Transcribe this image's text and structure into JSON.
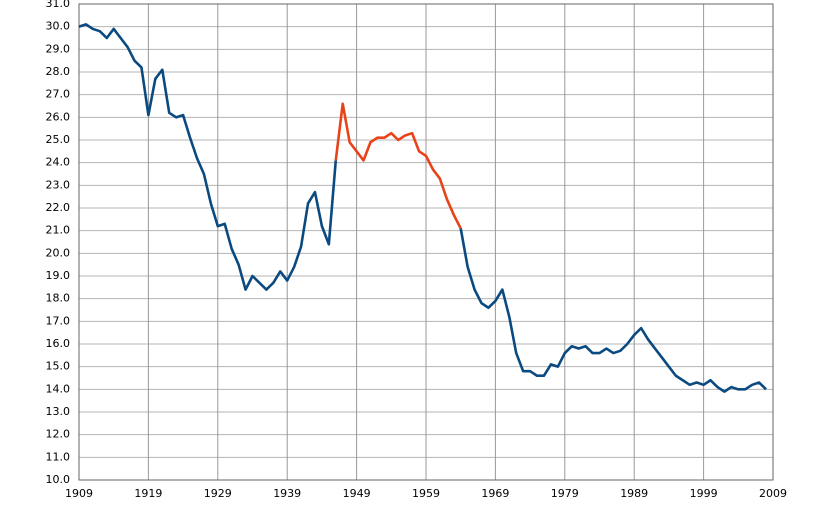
{
  "chart_data": {
    "type": "line",
    "x": [
      1909,
      1910,
      1911,
      1912,
      1913,
      1914,
      1915,
      1916,
      1917,
      1918,
      1919,
      1920,
      1921,
      1922,
      1923,
      1924,
      1925,
      1926,
      1927,
      1928,
      1929,
      1930,
      1931,
      1932,
      1933,
      1934,
      1935,
      1936,
      1937,
      1938,
      1939,
      1940,
      1941,
      1942,
      1943,
      1944,
      1945,
      1946,
      1947,
      1948,
      1949,
      1950,
      1951,
      1952,
      1953,
      1954,
      1955,
      1956,
      1957,
      1958,
      1959,
      1960,
      1961,
      1962,
      1963,
      1964,
      1965,
      1966,
      1967,
      1968,
      1969,
      1970,
      1971,
      1972,
      1973,
      1974,
      1975,
      1976,
      1977,
      1978,
      1979,
      1980,
      1981,
      1982,
      1983,
      1984,
      1985,
      1986,
      1987,
      1988,
      1989,
      1990,
      1991,
      1992,
      1993,
      1994,
      1995,
      1996,
      1997,
      1998,
      1999,
      2000,
      2001,
      2002,
      2003,
      2004,
      2005,
      2006,
      2007,
      2008
    ],
    "series": [
      {
        "color": "#0b4a80",
        "values": [
          30.0,
          30.1,
          29.9,
          29.8,
          29.5,
          29.9,
          29.5,
          29.1,
          28.5,
          28.2,
          26.1,
          27.7,
          28.1,
          26.2,
          26.0,
          26.1,
          25.1,
          24.2,
          23.5,
          22.2,
          21.2,
          21.3,
          20.2,
          19.5,
          18.4,
          19.0,
          18.7,
          18.4,
          18.7,
          19.2,
          18.8,
          19.4,
          20.3,
          22.2,
          22.7,
          21.2,
          20.4,
          24.1,
          null,
          null,
          null,
          null,
          null,
          null,
          null,
          null,
          null,
          null,
          null,
          null,
          null,
          null,
          null,
          null,
          null,
          21.1,
          19.4,
          18.4,
          17.8,
          17.6,
          17.9,
          18.4,
          17.2,
          15.6,
          14.8,
          14.8,
          14.6,
          14.6,
          15.1,
          15.0,
          15.6,
          15.9,
          15.8,
          15.9,
          15.6,
          15.6,
          15.8,
          15.6,
          15.7,
          16.0,
          16.4,
          16.7,
          16.2,
          15.8,
          15.4,
          15.0,
          14.6,
          14.4,
          14.2,
          14.3,
          14.2,
          14.4,
          14.1,
          13.9,
          14.1,
          14.0,
          14.0,
          14.2,
          14.3,
          14.0
        ]
      },
      {
        "color": "#e8431a",
        "values": [
          null,
          null,
          null,
          null,
          null,
          null,
          null,
          null,
          null,
          null,
          null,
          null,
          null,
          null,
          null,
          null,
          null,
          null,
          null,
          null,
          null,
          null,
          null,
          null,
          null,
          null,
          null,
          null,
          null,
          null,
          null,
          null,
          null,
          null,
          null,
          null,
          null,
          24.1,
          26.6,
          24.9,
          24.5,
          24.1,
          24.9,
          25.1,
          25.1,
          25.3,
          25.0,
          25.2,
          25.3,
          24.5,
          24.3,
          23.7,
          23.3,
          22.4,
          21.7,
          21.1,
          null,
          null,
          null,
          null,
          null,
          null,
          null,
          null,
          null,
          null,
          null,
          null,
          null,
          null,
          null,
          null,
          null,
          null,
          null,
          null,
          null,
          null,
          null,
          null,
          null,
          null,
          null,
          null,
          null,
          null,
          null,
          null,
          null,
          null,
          null,
          null,
          null,
          null,
          null,
          null,
          null,
          null,
          null,
          null
        ]
      }
    ],
    "xlim": [
      1909,
      2009
    ],
    "xticks": [
      1909,
      1919,
      1929,
      1939,
      1949,
      1959,
      1969,
      1979,
      1989,
      1999,
      2009
    ],
    "ylim": [
      10,
      31
    ],
    "yticks": [
      {
        "value": 10,
        "label": "10.0"
      },
      {
        "value": 11,
        "label": "11.0"
      },
      {
        "value": 12,
        "label": "12.0"
      },
      {
        "value": 13,
        "label": "13.0"
      },
      {
        "value": 14,
        "label": "14.0"
      },
      {
        "value": 15,
        "label": "15.0"
      },
      {
        "value": 16,
        "label": "16.0"
      },
      {
        "value": 17,
        "label": "17.0"
      },
      {
        "value": 18,
        "label": "18.0"
      },
      {
        "value": 19,
        "label": "19.0"
      },
      {
        "value": 20,
        "label": "20.0"
      },
      {
        "value": 21,
        "label": "21.0"
      },
      {
        "value": 22,
        "label": "22.0"
      },
      {
        "value": 23,
        "label": "23.0"
      },
      {
        "value": 24,
        "label": "24.0"
      },
      {
        "value": 25,
        "label": "25.0"
      },
      {
        "value": 26,
        "label": "26.0"
      },
      {
        "value": 27,
        "label": "27.0"
      },
      {
        "value": 28,
        "label": "28.0"
      },
      {
        "value": 29,
        "label": "29.0"
      },
      {
        "value": 30,
        "label": "30.0"
      },
      {
        "value": 31,
        "label": "31.0"
      }
    ],
    "grid": true
  }
}
